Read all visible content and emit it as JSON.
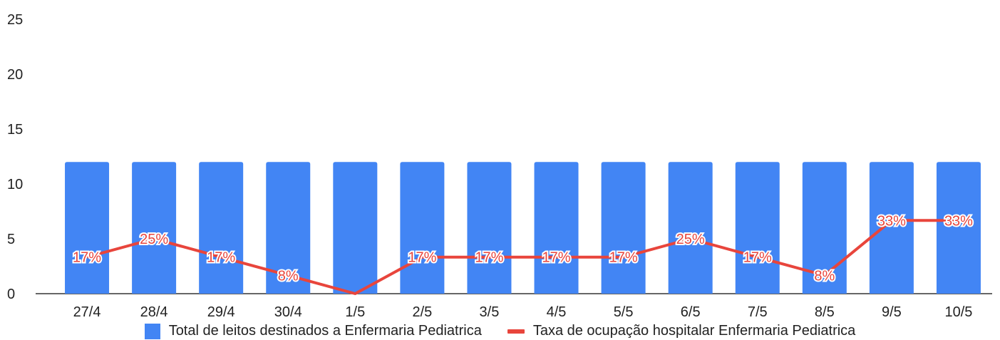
{
  "chart_data": {
    "type": "bar",
    "title": "",
    "categories": [
      "27/4",
      "28/4",
      "29/4",
      "30/4",
      "1/5",
      "2/5",
      "3/5",
      "4/5",
      "5/5",
      "6/5",
      "7/5",
      "8/5",
      "9/5",
      "10/5"
    ],
    "series": [
      {
        "name": "Total de leitos destinados a Enfermaria Pediatrica",
        "type": "bar",
        "values": [
          12,
          12,
          12,
          12,
          12,
          12,
          12,
          12,
          12,
          12,
          12,
          12,
          12,
          12
        ],
        "color": "#4285f4"
      },
      {
        "name": "Taxa de ocupação hospitalar Enfermaria Pediatrica",
        "type": "line",
        "values": [
          3.33,
          5,
          3.33,
          1.67,
          0,
          3.33,
          3.33,
          3.33,
          3.33,
          5,
          3.33,
          1.67,
          6.67,
          6.67
        ],
        "labels": [
          "17%",
          "25%",
          "17%",
          "8%",
          "",
          "17%",
          "17%",
          "17%",
          "17%",
          "25%",
          "17%",
          "8%",
          "33%",
          "33%"
        ],
        "color": "#e8453c"
      }
    ],
    "ylim": [
      0,
      25
    ],
    "yticks": [
      "0",
      "5",
      "10",
      "15",
      "20",
      "25"
    ],
    "grid": false,
    "legend_position": "bottom"
  }
}
